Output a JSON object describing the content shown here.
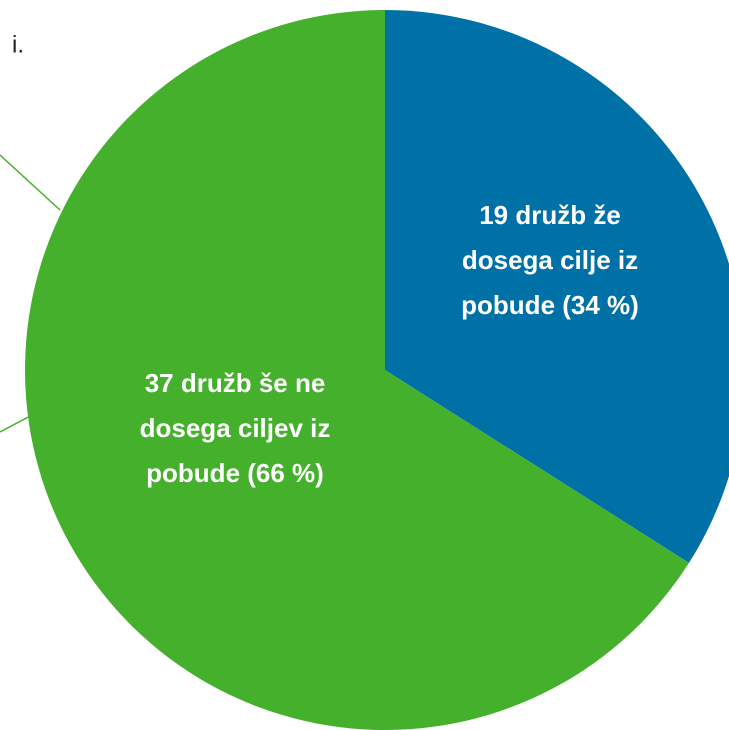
{
  "chart_data": {
    "type": "pie",
    "annotation": "i.",
    "values": [
      34,
      66
    ],
    "value_labels": [
      [
        "19 družb že",
        "dosega cilje iz",
        "pobude (34 %)"
      ],
      [
        "37 družb še ne",
        "dosega ciljev iz",
        "pobude (66 %)"
      ]
    ],
    "colors": [
      "#0071a6",
      "#44b02b"
    ]
  }
}
